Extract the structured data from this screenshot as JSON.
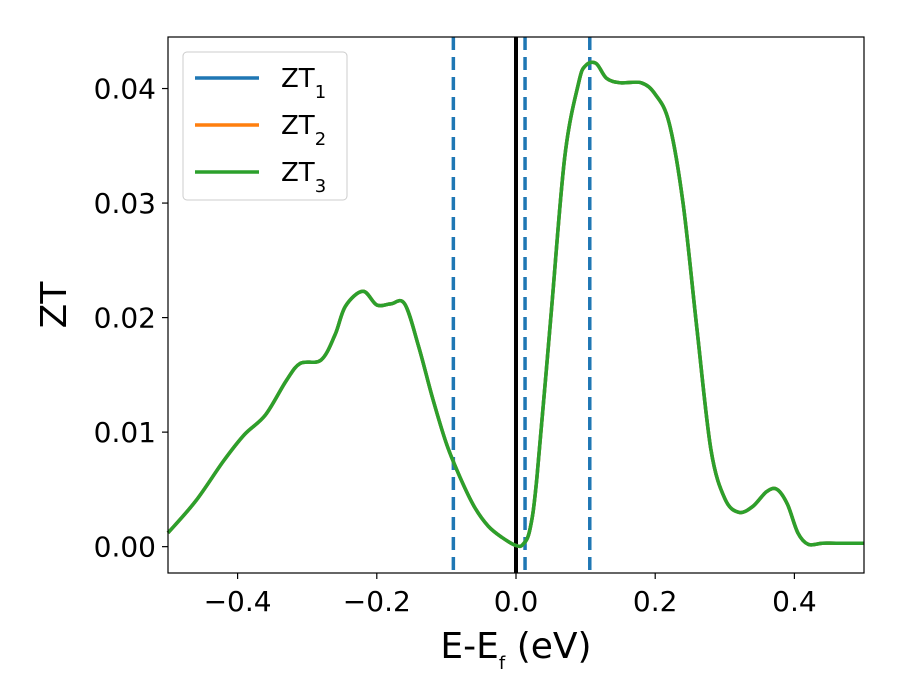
{
  "chart_data": {
    "type": "line",
    "xlabel": "E-E",
    "xlabel_sub": "f",
    "xlabel_unit": " (eV)",
    "ylabel": "ZT",
    "xlim": [
      -0.5,
      0.5
    ],
    "ylim": [
      -0.0023,
      0.0445
    ],
    "grid": false,
    "legend_position": "top-left",
    "xticks": [
      {
        "value": -0.4,
        "label": "−0.4"
      },
      {
        "value": -0.2,
        "label": "−0.2"
      },
      {
        "value": 0.0,
        "label": "0.0"
      },
      {
        "value": 0.2,
        "label": "0.2"
      },
      {
        "value": 0.4,
        "label": "0.4"
      }
    ],
    "yticks": [
      {
        "value": 0.0,
        "label": "0.00"
      },
      {
        "value": 0.01,
        "label": "0.01"
      },
      {
        "value": 0.02,
        "label": "0.02"
      },
      {
        "value": 0.03,
        "label": "0.03"
      },
      {
        "value": 0.04,
        "label": "0.04"
      }
    ],
    "series": [
      {
        "name": "ZT",
        "name_sub": "1",
        "color": "#1f77b4",
        "x": [
          -0.5,
          -0.46,
          -0.42,
          -0.39,
          -0.36,
          -0.33,
          -0.31,
          -0.28,
          -0.26,
          -0.245,
          -0.22,
          -0.2,
          -0.18,
          -0.16,
          -0.14,
          -0.12,
          -0.1,
          -0.08,
          -0.06,
          -0.04,
          -0.02,
          0.0,
          0.01,
          0.02,
          0.03,
          0.05,
          0.07,
          0.09,
          0.1,
          0.115,
          0.13,
          0.15,
          0.18,
          0.2,
          0.22,
          0.24,
          0.26,
          0.28,
          0.3,
          0.32,
          0.34,
          0.36,
          0.375,
          0.39,
          0.405,
          0.42,
          0.44,
          0.46,
          0.5
        ],
        "y": [
          0.0012,
          0.004,
          0.0075,
          0.0098,
          0.0115,
          0.0145,
          0.016,
          0.0163,
          0.0185,
          0.021,
          0.0223,
          0.0211,
          0.0212,
          0.0212,
          0.0175,
          0.013,
          0.009,
          0.006,
          0.0035,
          0.0018,
          0.0008,
          0.0001,
          0.0002,
          0.0015,
          0.006,
          0.02,
          0.034,
          0.0405,
          0.042,
          0.0422,
          0.0409,
          0.0405,
          0.0405,
          0.0395,
          0.037,
          0.03,
          0.019,
          0.0085,
          0.0042,
          0.003,
          0.0035,
          0.0048,
          0.005,
          0.0037,
          0.0012,
          0.0002,
          0.0003,
          0.0003,
          0.0003
        ]
      },
      {
        "name": "ZT",
        "name_sub": "2",
        "color": "#ff7f0e",
        "x": [
          -0.5,
          -0.46,
          -0.42,
          -0.39,
          -0.36,
          -0.33,
          -0.31,
          -0.28,
          -0.26,
          -0.245,
          -0.22,
          -0.2,
          -0.18,
          -0.16,
          -0.14,
          -0.12,
          -0.1,
          -0.08,
          -0.06,
          -0.04,
          -0.02,
          0.0,
          0.01,
          0.02,
          0.03,
          0.05,
          0.07,
          0.09,
          0.1,
          0.115,
          0.13,
          0.15,
          0.18,
          0.2,
          0.22,
          0.24,
          0.26,
          0.28,
          0.3,
          0.32,
          0.34,
          0.36,
          0.375,
          0.39,
          0.405,
          0.42,
          0.44,
          0.46,
          0.5
        ],
        "y": [
          0.0012,
          0.004,
          0.0075,
          0.0098,
          0.0115,
          0.0145,
          0.016,
          0.0163,
          0.0185,
          0.021,
          0.0223,
          0.0211,
          0.0212,
          0.0212,
          0.0175,
          0.013,
          0.009,
          0.006,
          0.0035,
          0.0018,
          0.0008,
          0.0001,
          0.0002,
          0.0015,
          0.006,
          0.02,
          0.034,
          0.0405,
          0.042,
          0.0422,
          0.0409,
          0.0405,
          0.0405,
          0.0395,
          0.037,
          0.03,
          0.019,
          0.0085,
          0.0042,
          0.003,
          0.0035,
          0.0048,
          0.005,
          0.0037,
          0.0012,
          0.0002,
          0.0003,
          0.0003,
          0.0003
        ]
      },
      {
        "name": "ZT",
        "name_sub": "3",
        "color": "#2ca02c",
        "x": [
          -0.5,
          -0.46,
          -0.42,
          -0.39,
          -0.36,
          -0.33,
          -0.31,
          -0.28,
          -0.26,
          -0.245,
          -0.22,
          -0.2,
          -0.18,
          -0.16,
          -0.14,
          -0.12,
          -0.1,
          -0.08,
          -0.06,
          -0.04,
          -0.02,
          0.0,
          0.01,
          0.02,
          0.03,
          0.05,
          0.07,
          0.09,
          0.1,
          0.115,
          0.13,
          0.15,
          0.18,
          0.2,
          0.22,
          0.24,
          0.26,
          0.28,
          0.3,
          0.32,
          0.34,
          0.36,
          0.375,
          0.39,
          0.405,
          0.42,
          0.44,
          0.46,
          0.5
        ],
        "y": [
          0.0012,
          0.004,
          0.0075,
          0.0098,
          0.0115,
          0.0145,
          0.016,
          0.0163,
          0.0185,
          0.021,
          0.0223,
          0.0211,
          0.0212,
          0.0212,
          0.0175,
          0.013,
          0.009,
          0.006,
          0.0035,
          0.0018,
          0.0008,
          0.0001,
          0.0002,
          0.0015,
          0.006,
          0.02,
          0.034,
          0.0405,
          0.042,
          0.0422,
          0.0409,
          0.0405,
          0.0405,
          0.0395,
          0.037,
          0.03,
          0.019,
          0.0085,
          0.0042,
          0.003,
          0.0035,
          0.0048,
          0.005,
          0.0037,
          0.0012,
          0.0002,
          0.0003,
          0.0003,
          0.0003
        ]
      }
    ],
    "vertical_lines": [
      {
        "x": 0.0,
        "color": "#000000",
        "style": "solid"
      },
      {
        "x": -0.09,
        "color": "#1f77b4",
        "style": "dashed"
      },
      {
        "x": 0.013,
        "color": "#1f77b4",
        "style": "dashed"
      },
      {
        "x": 0.106,
        "color": "#1f77b4",
        "style": "dashed"
      }
    ]
  }
}
